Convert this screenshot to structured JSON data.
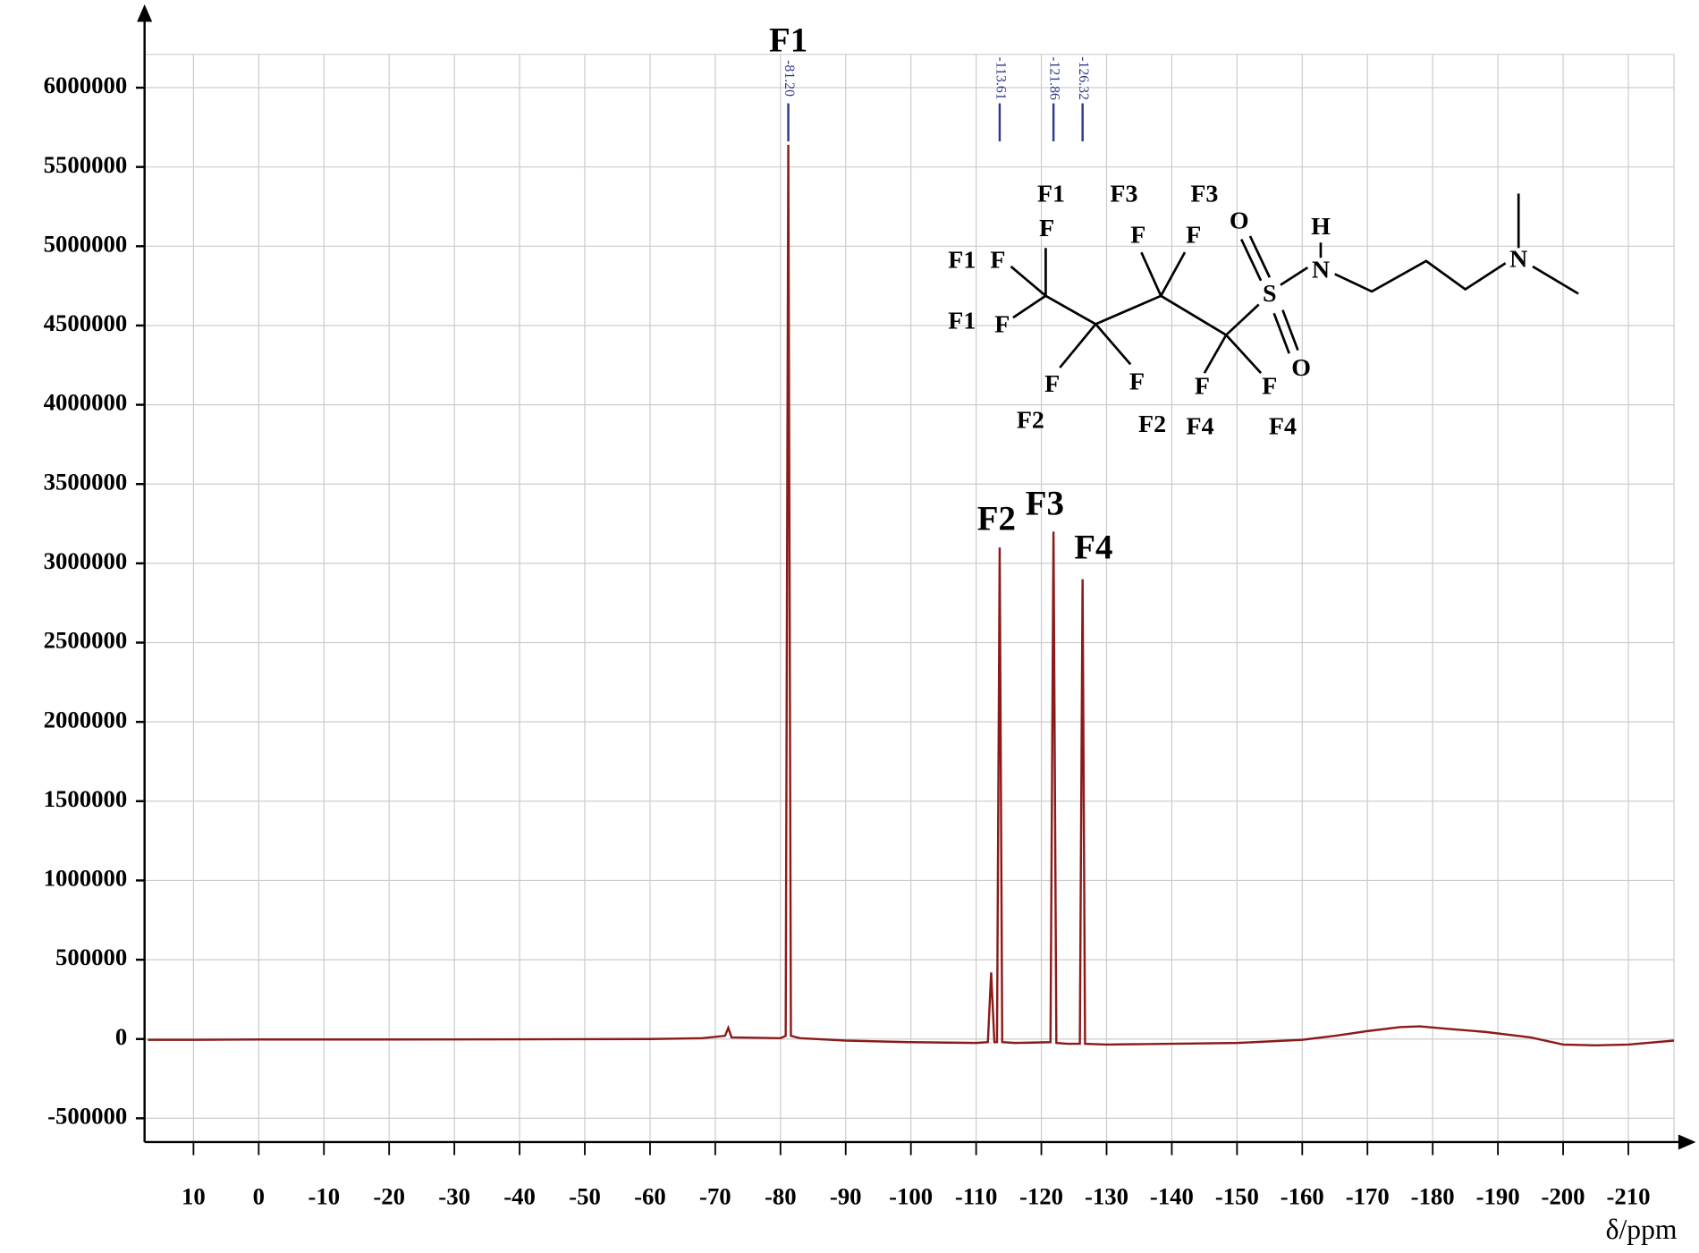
{
  "chart_data": {
    "type": "line",
    "xlabel": "δ/ppm",
    "x": [
      17,
      10,
      0,
      -20,
      -40,
      -60,
      -68,
      -71.5,
      -72,
      -72.5,
      -80,
      -80.8,
      -81.2,
      -81.6,
      -83,
      -90,
      -100,
      -110,
      -111.8,
      -112.3,
      -112.8,
      -113.2,
      -113.61,
      -114,
      -116,
      -121.4,
      -121.86,
      -122.3,
      -124,
      -125.9,
      -126.32,
      -126.7,
      -130,
      -140,
      -150,
      -160,
      -165,
      -170,
      -175,
      -178,
      -182,
      -188,
      -195,
      -200,
      -205,
      -210,
      -217
    ],
    "series": [
      {
        "color": "#8b1a1a",
        "values": [
          -5000,
          -5000,
          -3000,
          -3000,
          -2000,
          0,
          5000,
          20000,
          70000,
          10000,
          5000,
          20000,
          5640000,
          20000,
          5000,
          -10000,
          -20000,
          -25000,
          -20000,
          420000,
          -20000,
          -20000,
          3100000,
          -20000,
          -25000,
          -20000,
          3200000,
          -25000,
          -30000,
          -30000,
          2900000,
          -30000,
          -35000,
          -30000,
          -25000,
          -5000,
          20000,
          50000,
          75000,
          80000,
          65000,
          45000,
          10000,
          -35000,
          -40000,
          -35000,
          -10000
        ]
      }
    ],
    "xlim": [
      17.5,
      -217
    ],
    "xticks": [
      10,
      0,
      -10,
      -20,
      -30,
      -40,
      -50,
      -60,
      -70,
      -80,
      -90,
      -100,
      -110,
      -120,
      -130,
      -140,
      -150,
      -160,
      -170,
      -180,
      -190,
      -200,
      -210
    ],
    "ylim": [
      -650000,
      6210000
    ],
    "yticks": [
      -500000,
      0,
      500000,
      1000000,
      1500000,
      2000000,
      2500000,
      3000000,
      3500000,
      4000000,
      4500000,
      5000000,
      5500000,
      6000000
    ],
    "grid": true,
    "peaks": {
      "x": [
        -81.2,
        -113.61,
        -121.86,
        -126.32
      ],
      "labels": [
        "-81.20",
        "-113.61",
        "-121.86",
        "-126.32"
      ],
      "names": [
        "F1",
        "F2",
        "F3",
        "F4"
      ],
      "color": "#2b3a8c"
    }
  },
  "structure": {
    "labels": [
      "F1",
      "F3",
      "F3",
      "F",
      "F",
      "F",
      "O",
      "H",
      "F1",
      "F",
      "N",
      "S",
      "N",
      "F1",
      "F",
      "O",
      "F",
      "F",
      "F",
      "F",
      "F2",
      "F2",
      "F4",
      "F4"
    ]
  }
}
